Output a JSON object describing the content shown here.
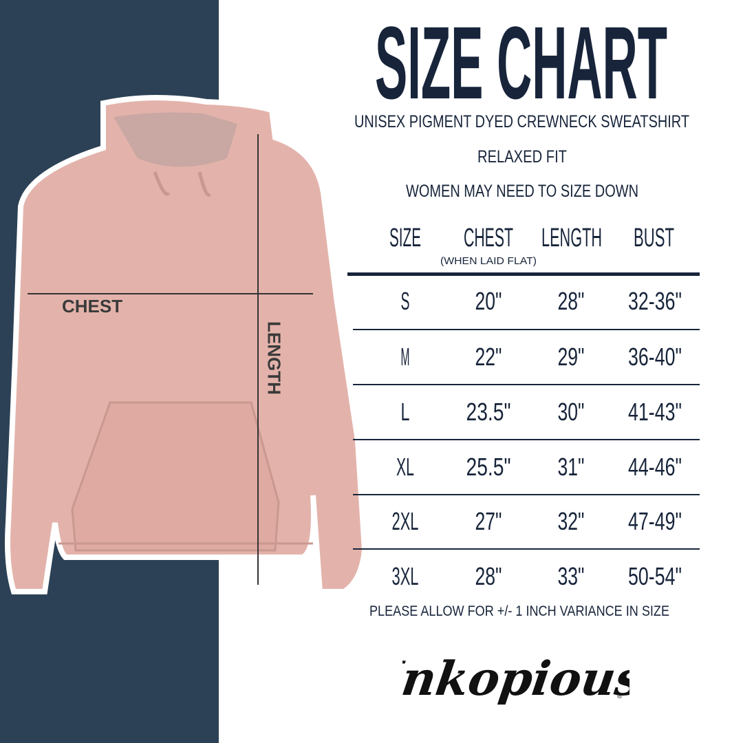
{
  "title": "SIZE CHART",
  "subtitle": "UNISEX PIGMENT DYED CREWNECK SWEATSHIRT",
  "fit": "RELAXED FIT",
  "advice": "WOMEN MAY NEED TO SIZE DOWN",
  "columns": [
    "SIZE",
    "CHEST",
    "LENGTH",
    "BUST"
  ],
  "chest_note": "(WHEN LAID FLAT)",
  "rows": [
    [
      "S",
      "20\"",
      "28\"",
      "32-36\""
    ],
    [
      "M",
      "22\"",
      "29\"",
      "36-40\""
    ],
    [
      "L",
      "23.5\"",
      "30\"",
      "41-43\""
    ],
    [
      "XL",
      "25.5\"",
      "31\"",
      "44-46\""
    ],
    [
      "2XL",
      "27\"",
      "32\"",
      "47-49\""
    ],
    [
      "3XL",
      "28\"",
      "33\"",
      "50-54\""
    ]
  ],
  "footnote": "PLEASE ALLOW FOR +/- 1 INCH VARIANCE IN SIZE",
  "diagram": {
    "chest_label": "CHEST",
    "length_label": "LENGTH"
  },
  "brand": "Inkopious",
  "colors": {
    "navy": "#17243a",
    "panel": "#2c4155",
    "hoodie": "#e3b3ab"
  }
}
